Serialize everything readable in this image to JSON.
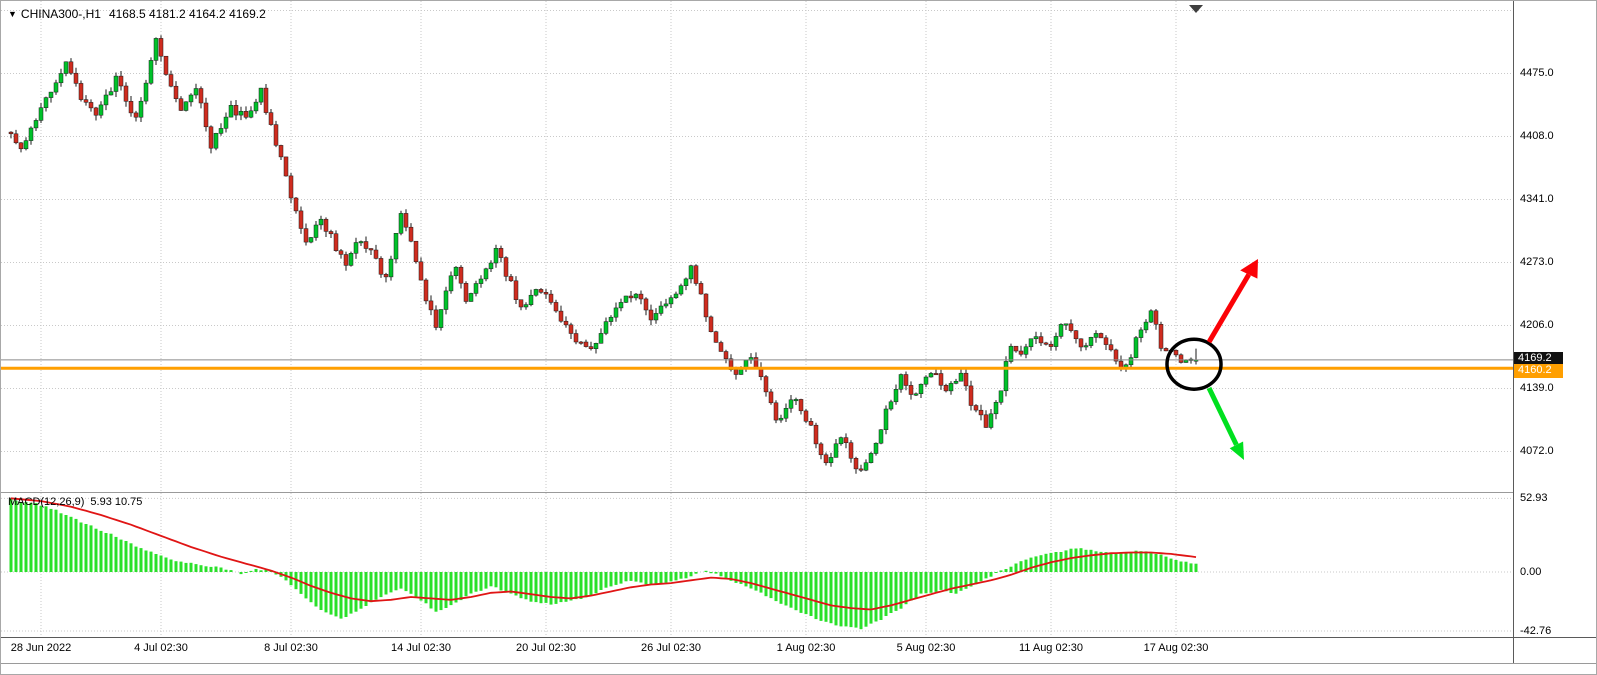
{
  "window": {
    "symbol_title": "CHINA300-,H1",
    "ohlc_values": "4168.5 4181.2 4164.2 4169.2"
  },
  "price_axis": {
    "ticks": [
      4475.0,
      4408.0,
      4341.0,
      4273.0,
      4206.0,
      4139.0,
      4072.0
    ],
    "bid_tag": "4169.2",
    "hline_tag": "4160.2"
  },
  "macd_axis": {
    "ticks": [
      "52.93",
      "0.00",
      "-42.76"
    ]
  },
  "time_axis": {
    "labels": [
      {
        "text": "28 Jun 2022",
        "bar": 6
      },
      {
        "text": "4 Jul 02:30",
        "bar": 30
      },
      {
        "text": "8 Jul 02:30",
        "bar": 56
      },
      {
        "text": "14 Jul 02:30",
        "bar": 82
      },
      {
        "text": "20 Jul 02:30",
        "bar": 107
      },
      {
        "text": "26 Jul 02:30",
        "bar": 132
      },
      {
        "text": "1 Aug 02:30",
        "bar": 159
      },
      {
        "text": "5 Aug 02:30",
        "bar": 183
      },
      {
        "text": "11 Aug 02:30",
        "bar": 208
      },
      {
        "text": "17 Aug 02:30",
        "bar": 233
      }
    ]
  },
  "indicator": {
    "label": "MACD(12,26,9)",
    "values": "5.93 10.75"
  },
  "colors": {
    "bull": "#00c22a",
    "bear": "#cf2c1f",
    "wick": "#1a1a1a",
    "grid": "#c9c9c9",
    "histogram": "#2ae02a",
    "signal_line": "#e01515",
    "horizontal_line": "#ff9f00",
    "bid_line": "#8a8a8a",
    "bid_tag_bg": "#111111",
    "hline_tag_bg": "#ff9f00",
    "arrow_up": "#fb0207",
    "arrow_down": "#00e01f",
    "circle": "#000000",
    "separator": "#8c8c8c",
    "text": "#000000"
  },
  "chart_data": {
    "type": "candlestick",
    "symbol": "CHINA300-",
    "timeframe": "H1",
    "title": "CHINA300-,H1",
    "current_bar": {
      "open": 4168.5,
      "high": 4181.2,
      "low": 4164.2,
      "close": 4169.2
    },
    "bid_price": 4169.2,
    "horizontal_line_price": 4160.2,
    "price_axis_ticks": [
      4475.0,
      4408.0,
      4341.0,
      4273.0,
      4206.0,
      4139.0,
      4072.0
    ],
    "visible_price_range": [
      4005,
      4542
    ],
    "visible_time_range": [
      "28 Jun 2022",
      "18 Aug 2022"
    ],
    "bar_count": 238,
    "noise": 10,
    "wick": 6,
    "seed": 9,
    "trend_anchors": [
      [
        0,
        4415
      ],
      [
        3,
        4390
      ],
      [
        8,
        4445
      ],
      [
        12,
        4490
      ],
      [
        15,
        4450
      ],
      [
        18,
        4430
      ],
      [
        22,
        4470
      ],
      [
        26,
        4425
      ],
      [
        30,
        4512
      ],
      [
        32,
        4470
      ],
      [
        35,
        4440
      ],
      [
        38,
        4462
      ],
      [
        41,
        4395
      ],
      [
        45,
        4440
      ],
      [
        48,
        4425
      ],
      [
        51,
        4455
      ],
      [
        54,
        4400
      ],
      [
        57,
        4345
      ],
      [
        60,
        4295
      ],
      [
        63,
        4320
      ],
      [
        66,
        4290
      ],
      [
        68,
        4270
      ],
      [
        71,
        4300
      ],
      [
        74,
        4275
      ],
      [
        76,
        4255
      ],
      [
        79,
        4325
      ],
      [
        82,
        4275
      ],
      [
        84,
        4230
      ],
      [
        86,
        4205
      ],
      [
        88,
        4245
      ],
      [
        90,
        4270
      ],
      [
        92,
        4235
      ],
      [
        95,
        4255
      ],
      [
        98,
        4285
      ],
      [
        101,
        4250
      ],
      [
        103,
        4225
      ],
      [
        106,
        4245
      ],
      [
        109,
        4230
      ],
      [
        111,
        4215
      ],
      [
        114,
        4190
      ],
      [
        117,
        4180
      ],
      [
        120,
        4205
      ],
      [
        123,
        4235
      ],
      [
        126,
        4240
      ],
      [
        129,
        4215
      ],
      [
        132,
        4225
      ],
      [
        135,
        4250
      ],
      [
        137,
        4265
      ],
      [
        139,
        4235
      ],
      [
        141,
        4195
      ],
      [
        143,
        4175
      ],
      [
        146,
        4155
      ],
      [
        149,
        4175
      ],
      [
        151,
        4150
      ],
      [
        154,
        4105
      ],
      [
        156,
        4115
      ],
      [
        158,
        4130
      ],
      [
        161,
        4095
      ],
      [
        164,
        4060
      ],
      [
        167,
        4090
      ],
      [
        170,
        4048
      ],
      [
        172,
        4060
      ],
      [
        174,
        4078
      ],
      [
        176,
        4115
      ],
      [
        179,
        4150
      ],
      [
        182,
        4130
      ],
      [
        185,
        4155
      ],
      [
        188,
        4140
      ],
      [
        191,
        4155
      ],
      [
        193,
        4120
      ],
      [
        196,
        4100
      ],
      [
        199,
        4140
      ],
      [
        201,
        4185
      ],
      [
        203,
        4180
      ],
      [
        206,
        4195
      ],
      [
        209,
        4185
      ],
      [
        212,
        4212
      ],
      [
        215,
        4185
      ],
      [
        218,
        4198
      ],
      [
        221,
        4175
      ],
      [
        224,
        4160
      ],
      [
        227,
        4205
      ],
      [
        229,
        4222
      ],
      [
        231,
        4185
      ],
      [
        234,
        4172
      ],
      [
        237,
        4169
      ]
    ],
    "macd": {
      "params": "12,26,9",
      "current_main": 5.93,
      "current_signal": 10.75,
      "axis_ticks": [
        52.93,
        0.0,
        -42.76
      ],
      "histogram_anchors": [
        [
          0,
          52
        ],
        [
          4,
          50
        ],
        [
          8,
          46
        ],
        [
          14,
          36
        ],
        [
          20,
          27
        ],
        [
          26,
          17
        ],
        [
          32,
          9
        ],
        [
          38,
          5
        ],
        [
          42,
          3
        ],
        [
          46,
          -1
        ],
        [
          49,
          2
        ],
        [
          52,
          1
        ],
        [
          55,
          -6
        ],
        [
          58,
          -16
        ],
        [
          62,
          -27
        ],
        [
          66,
          -34
        ],
        [
          70,
          -26
        ],
        [
          74,
          -18
        ],
        [
          78,
          -12
        ],
        [
          82,
          -20
        ],
        [
          85,
          -29
        ],
        [
          88,
          -24
        ],
        [
          92,
          -16
        ],
        [
          96,
          -10
        ],
        [
          100,
          -16
        ],
        [
          104,
          -21
        ],
        [
          108,
          -23
        ],
        [
          112,
          -21
        ],
        [
          116,
          -17
        ],
        [
          120,
          -10
        ],
        [
          124,
          -6
        ],
        [
          128,
          -9
        ],
        [
          132,
          -7
        ],
        [
          136,
          -3
        ],
        [
          139,
          1
        ],
        [
          142,
          -3
        ],
        [
          146,
          -9
        ],
        [
          150,
          -15
        ],
        [
          154,
          -23
        ],
        [
          158,
          -29
        ],
        [
          162,
          -35
        ],
        [
          166,
          -39
        ],
        [
          170,
          -41
        ],
        [
          174,
          -34
        ],
        [
          178,
          -26
        ],
        [
          182,
          -16
        ],
        [
          186,
          -13
        ],
        [
          189,
          -16
        ],
        [
          192,
          -10
        ],
        [
          195,
          -5
        ],
        [
          198,
          1
        ],
        [
          201,
          6
        ],
        [
          204,
          10
        ],
        [
          207,
          13
        ],
        [
          210,
          15
        ],
        [
          213,
          17
        ],
        [
          216,
          16
        ],
        [
          219,
          14
        ],
        [
          222,
          13
        ],
        [
          225,
          15
        ],
        [
          228,
          14
        ],
        [
          231,
          11
        ],
        [
          234,
          8
        ],
        [
          237,
          6
        ]
      ],
      "signal_anchors": [
        [
          0,
          53
        ],
        [
          6,
          51
        ],
        [
          12,
          47
        ],
        [
          18,
          41
        ],
        [
          24,
          34
        ],
        [
          30,
          26
        ],
        [
          36,
          18
        ],
        [
          42,
          11
        ],
        [
          48,
          5
        ],
        [
          52,
          1
        ],
        [
          56,
          -4
        ],
        [
          60,
          -10
        ],
        [
          64,
          -15
        ],
        [
          68,
          -19
        ],
        [
          72,
          -21
        ],
        [
          76,
          -20
        ],
        [
          80,
          -18
        ],
        [
          84,
          -19
        ],
        [
          88,
          -20
        ],
        [
          92,
          -18
        ],
        [
          96,
          -15
        ],
        [
          100,
          -14
        ],
        [
          104,
          -16
        ],
        [
          108,
          -18
        ],
        [
          112,
          -19
        ],
        [
          116,
          -17
        ],
        [
          120,
          -14
        ],
        [
          124,
          -11
        ],
        [
          128,
          -9
        ],
        [
          132,
          -8
        ],
        [
          136,
          -6
        ],
        [
          140,
          -4
        ],
        [
          144,
          -5
        ],
        [
          148,
          -8
        ],
        [
          152,
          -12
        ],
        [
          156,
          -16
        ],
        [
          160,
          -20
        ],
        [
          164,
          -24
        ],
        [
          168,
          -26
        ],
        [
          172,
          -27
        ],
        [
          176,
          -24
        ],
        [
          180,
          -20
        ],
        [
          184,
          -16
        ],
        [
          188,
          -12
        ],
        [
          192,
          -9
        ],
        [
          196,
          -6
        ],
        [
          200,
          -2
        ],
        [
          204,
          3
        ],
        [
          208,
          7
        ],
        [
          212,
          10
        ],
        [
          216,
          12
        ],
        [
          220,
          13.5
        ],
        [
          224,
          14
        ],
        [
          228,
          14
        ],
        [
          232,
          13
        ],
        [
          237,
          10.75
        ]
      ]
    },
    "annotations": {
      "highlight_circle": {
        "bar": 237,
        "price": 4164.5
      },
      "arrows": [
        {
          "direction": "up",
          "color_key": "arrow_up"
        },
        {
          "direction": "down",
          "color_key": "arrow_down"
        }
      ]
    }
  }
}
